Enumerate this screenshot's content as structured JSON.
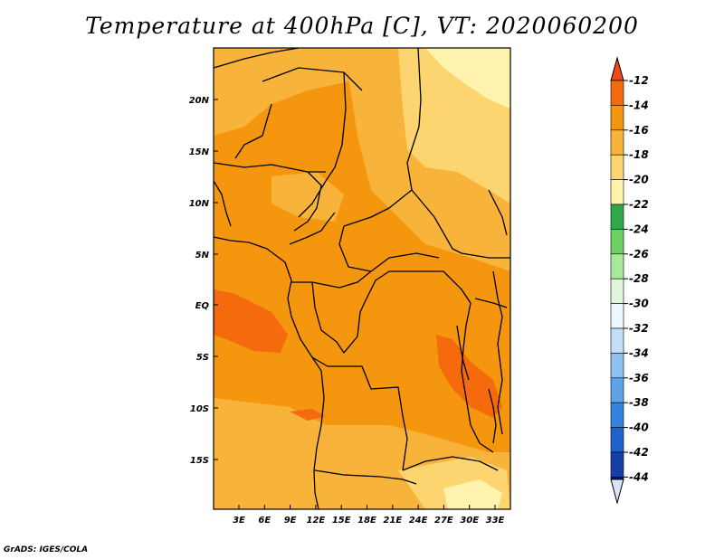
{
  "title": "Temperature at 400hPa [C], VT: 2020060200",
  "credit": "GrADS: IGES/COLA",
  "map": {
    "lat_labels": [
      "20N",
      "15N",
      "10N",
      "5N",
      "EQ",
      "5S",
      "10S",
      "15S"
    ],
    "lon_labels": [
      "3E",
      "6E",
      "9E",
      "12E",
      "15E",
      "18E",
      "21E",
      "24E",
      "27E",
      "30E",
      "33E"
    ],
    "colors": {
      "c12_14": "#f46a0c",
      "c14_16": "#f5960f",
      "c16_18": "#f8b43a",
      "c18_20": "#fcd570",
      "c20_22": "#fff3ad",
      "border": "#000000"
    }
  },
  "colorbar": {
    "labels": [
      "-12",
      "-14",
      "-16",
      "-18",
      "-20",
      "-22",
      "-24",
      "-26",
      "-28",
      "-30",
      "-32",
      "-34",
      "-36",
      "-38",
      "-40",
      "-42",
      "-44"
    ],
    "top_color": "#f0491c",
    "colors": [
      "#f46a0c",
      "#f5960f",
      "#f8b43a",
      "#fcd570",
      "#fff3ad",
      "#2ea84a",
      "#6dd164",
      "#a8e89b",
      "#dff5dc",
      "#eef7fd",
      "#c2dff6",
      "#8fc2ef",
      "#5ca4e7",
      "#3384df",
      "#1e62cc",
      "#1740a6",
      "#0e1a6e"
    ],
    "bottom_color": "#dbe2f7"
  }
}
